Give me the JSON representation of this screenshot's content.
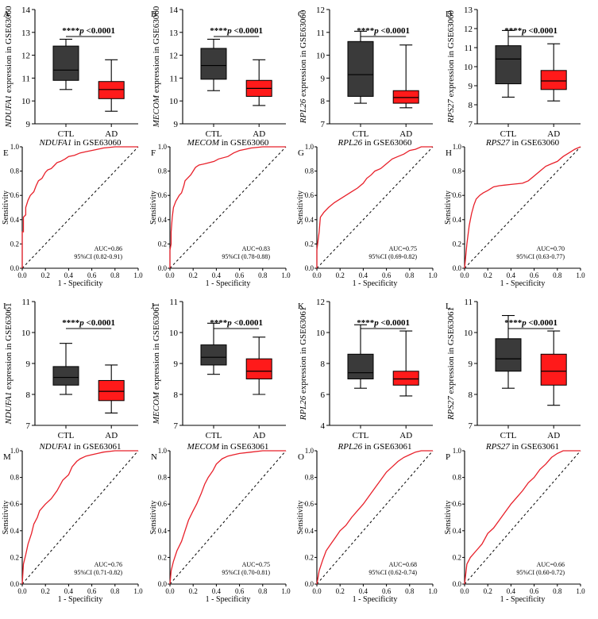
{
  "panels": [
    {
      "letter": "A",
      "type": "box",
      "gene": "NDUFA1",
      "ylabel_suffix": " expression in GSE63060",
      "ylim": [
        9,
        14
      ],
      "ticks": [
        9,
        10,
        11,
        12,
        13,
        14
      ],
      "categories": [
        "CTL",
        "AD"
      ],
      "boxes": [
        {
          "name": "CTL",
          "min": 10.5,
          "q1": 10.9,
          "median": 11.35,
          "q3": 12.4,
          "max": 12.7,
          "color": "#3a3a3a"
        },
        {
          "name": "AD",
          "min": 9.55,
          "q1": 10.1,
          "median": 10.5,
          "q3": 10.85,
          "max": 11.8,
          "color": "#ff1a1a"
        }
      ],
      "sig_stars": "****",
      "sig_p": "p",
      "sig_text": " <0.0001"
    },
    {
      "letter": "B",
      "type": "box",
      "gene": "MECOM",
      "ylabel_suffix": " expression in GSE63060",
      "ylim": [
        9,
        14
      ],
      "ticks": [
        9,
        10,
        11,
        12,
        13,
        14
      ],
      "categories": [
        "CTL",
        "AD"
      ],
      "boxes": [
        {
          "name": "CTL",
          "min": 10.45,
          "q1": 10.95,
          "median": 11.55,
          "q3": 12.3,
          "max": 12.7,
          "color": "#3a3a3a"
        },
        {
          "name": "AD",
          "min": 9.8,
          "q1": 10.2,
          "median": 10.55,
          "q3": 10.9,
          "max": 11.8,
          "color": "#ff1a1a"
        }
      ],
      "sig_stars": "****",
      "sig_p": "p",
      "sig_text": " <0.0001"
    },
    {
      "letter": "C",
      "type": "box",
      "gene": "RPL26",
      "ylabel_suffix": " expression in GSE63060",
      "ylim": [
        7,
        12
      ],
      "ticks": [
        7,
        8,
        9,
        10,
        11,
        12
      ],
      "categories": [
        "CTL",
        "AD"
      ],
      "boxes": [
        {
          "name": "CTL",
          "min": 7.9,
          "q1": 8.2,
          "median": 9.15,
          "q3": 10.6,
          "max": 11.05,
          "color": "#3a3a3a"
        },
        {
          "name": "AD",
          "min": 7.7,
          "q1": 7.9,
          "median": 8.15,
          "q3": 8.45,
          "max": 10.45,
          "color": "#ff1a1a"
        }
      ],
      "sig_stars": "****",
      "sig_p": "p",
      "sig_text": " <0.0001"
    },
    {
      "letter": "D",
      "type": "box",
      "gene": "RPS27",
      "ylabel_suffix": " expression in GSE63060",
      "ylim": [
        7,
        13
      ],
      "ticks": [
        7,
        8,
        9,
        10,
        11,
        12,
        13
      ],
      "categories": [
        "CTL",
        "AD"
      ],
      "boxes": [
        {
          "name": "CTL",
          "min": 8.4,
          "q1": 9.1,
          "median": 10.4,
          "q3": 11.1,
          "max": 11.9,
          "color": "#3a3a3a"
        },
        {
          "name": "AD",
          "min": 8.2,
          "q1": 8.8,
          "median": 9.25,
          "q3": 9.8,
          "max": 11.2,
          "color": "#ff1a1a"
        }
      ],
      "sig_stars": "****",
      "sig_p": "p",
      "sig_text": " <0.0001"
    },
    {
      "letter": "E",
      "type": "roc",
      "gene": "NDUFA1",
      "title_suffix": " in GSE63060",
      "auc": "AUC=0.86",
      "ci": "95%CI (0.82-0.91)",
      "x": [
        0,
        0,
        0.01,
        0.01,
        0.03,
        0.03,
        0.05,
        0.07,
        0.1,
        0.12,
        0.14,
        0.17,
        0.2,
        0.22,
        0.25,
        0.27,
        0.3,
        0.33,
        0.37,
        0.4,
        0.45,
        0.5,
        0.55,
        0.6,
        0.65,
        0.7,
        0.8,
        0.9,
        1.0
      ],
      "y": [
        0,
        0.3,
        0.3,
        0.42,
        0.44,
        0.5,
        0.56,
        0.6,
        0.63,
        0.68,
        0.72,
        0.74,
        0.79,
        0.81,
        0.82,
        0.84,
        0.87,
        0.88,
        0.9,
        0.92,
        0.93,
        0.95,
        0.96,
        0.97,
        0.98,
        0.99,
        1.0,
        1.0,
        1.0
      ]
    },
    {
      "letter": "F",
      "type": "roc",
      "gene": "MECOM",
      "title_suffix": " in GSE63060",
      "auc": "AUC=0.83",
      "ci": "95%CI (0.78-0.88)",
      "x": [
        0,
        0,
        0.01,
        0.01,
        0.02,
        0.03,
        0.05,
        0.08,
        0.1,
        0.12,
        0.13,
        0.15,
        0.18,
        0.2,
        0.22,
        0.25,
        0.3,
        0.38,
        0.42,
        0.5,
        0.55,
        0.6,
        0.65,
        0.7,
        0.8,
        0.9,
        1.0
      ],
      "y": [
        0,
        0.15,
        0.2,
        0.3,
        0.42,
        0.5,
        0.55,
        0.6,
        0.62,
        0.68,
        0.72,
        0.74,
        0.77,
        0.8,
        0.83,
        0.85,
        0.86,
        0.88,
        0.9,
        0.92,
        0.95,
        0.97,
        0.98,
        0.99,
        1.0,
        1.0,
        1.0
      ]
    },
    {
      "letter": "G",
      "type": "roc",
      "gene": "RPL26",
      "title_suffix": " in GSE63060",
      "auc": "AUC=0.75",
      "ci": "95%CI (0.69-0.82)",
      "x": [
        0,
        0,
        0.02,
        0.03,
        0.06,
        0.1,
        0.15,
        0.2,
        0.25,
        0.3,
        0.35,
        0.4,
        0.43,
        0.47,
        0.5,
        0.55,
        0.6,
        0.65,
        0.7,
        0.75,
        0.8,
        0.85,
        0.9,
        1.0
      ],
      "y": [
        0,
        0.15,
        0.3,
        0.42,
        0.46,
        0.5,
        0.54,
        0.57,
        0.6,
        0.63,
        0.66,
        0.7,
        0.74,
        0.77,
        0.8,
        0.82,
        0.86,
        0.9,
        0.92,
        0.94,
        0.97,
        0.98,
        1.0,
        1.0
      ]
    },
    {
      "letter": "H",
      "type": "roc",
      "gene": "RPS27",
      "title_suffix": " in GSE63060",
      "auc": "AUC=0.70",
      "ci": "95%CI (0.63-0.77)",
      "x": [
        0,
        0.02,
        0.04,
        0.06,
        0.08,
        0.1,
        0.13,
        0.16,
        0.2,
        0.25,
        0.3,
        0.4,
        0.5,
        0.55,
        0.6,
        0.65,
        0.7,
        0.75,
        0.8,
        0.85,
        0.9,
        0.95,
        1.0
      ],
      "y": [
        0,
        0.2,
        0.35,
        0.45,
        0.52,
        0.57,
        0.6,
        0.62,
        0.64,
        0.67,
        0.68,
        0.69,
        0.7,
        0.72,
        0.76,
        0.8,
        0.84,
        0.86,
        0.88,
        0.92,
        0.95,
        0.98,
        1.0
      ]
    },
    {
      "letter": "I",
      "type": "box",
      "gene": "NDUFA1",
      "ylabel_suffix": " expression in GSE63061",
      "ylim": [
        7,
        11
      ],
      "ticks": [
        7,
        8,
        9,
        10,
        11
      ],
      "categories": [
        "CTL",
        "AD"
      ],
      "boxes": [
        {
          "name": "CTL",
          "min": 8.0,
          "q1": 8.3,
          "median": 8.55,
          "q3": 8.9,
          "max": 9.65,
          "color": "#3a3a3a"
        },
        {
          "name": "AD",
          "min": 7.4,
          "q1": 7.8,
          "median": 8.1,
          "q3": 8.45,
          "max": 8.95,
          "color": "#ff1a1a"
        }
      ],
      "sig_stars": "****",
      "sig_p": "p",
      "sig_text": " <0.0001"
    },
    {
      "letter": "J",
      "type": "box",
      "gene": "MECOM",
      "ylabel_suffix": " expression in GSE63061",
      "ylim": [
        7,
        11
      ],
      "ticks": [
        7,
        8,
        9,
        10,
        11
      ],
      "categories": [
        "CTL",
        "AD"
      ],
      "boxes": [
        {
          "name": "CTL",
          "min": 8.65,
          "q1": 8.95,
          "median": 9.2,
          "q3": 9.6,
          "max": 10.3,
          "color": "#3a3a3a"
        },
        {
          "name": "AD",
          "min": 8.0,
          "q1": 8.5,
          "median": 8.75,
          "q3": 9.15,
          "max": 9.85,
          "color": "#ff1a1a"
        }
      ],
      "sig_stars": "****",
      "sig_p": "p",
      "sig_text": " <0.0001"
    },
    {
      "letter": "K",
      "type": "box",
      "gene": "RPL26",
      "ylabel_suffix": " expression in GSE63061",
      "ylim": [
        4,
        12
      ],
      "ticks": [
        4,
        6,
        8,
        10,
        12
      ],
      "categories": [
        "CTL",
        "AD"
      ],
      "boxes": [
        {
          "name": "CTL",
          "min": 6.4,
          "q1": 7.0,
          "median": 7.4,
          "q3": 8.6,
          "max": 10.5,
          "color": "#3a3a3a"
        },
        {
          "name": "AD",
          "min": 5.9,
          "q1": 6.6,
          "median": 7.0,
          "q3": 7.5,
          "max": 10.1,
          "color": "#ff1a1a"
        }
      ],
      "sig_stars": "****",
      "sig_p": "p",
      "sig_text": " <0.0001"
    },
    {
      "letter": "L",
      "type": "box",
      "gene": "RPS27",
      "ylabel_suffix": " expression in GSE63061",
      "ylim": [
        7,
        11
      ],
      "ticks": [
        7,
        8,
        9,
        10,
        11
      ],
      "categories": [
        "CTL",
        "AD"
      ],
      "boxes": [
        {
          "name": "CTL",
          "min": 8.2,
          "q1": 8.75,
          "median": 9.15,
          "q3": 9.8,
          "max": 10.55,
          "color": "#3a3a3a"
        },
        {
          "name": "AD",
          "min": 7.65,
          "q1": 8.3,
          "median": 8.75,
          "q3": 9.3,
          "max": 10.05,
          "color": "#ff1a1a"
        }
      ],
      "sig_stars": "****",
      "sig_p": "p",
      "sig_text": " <0.0001"
    },
    {
      "letter": "M",
      "type": "roc",
      "gene": "NDUFA1",
      "title_suffix": " in GSE63061",
      "auc": "AUC=0.76",
      "ci": "95%CI (0.71-0.82)",
      "x": [
        0,
        0.01,
        0.03,
        0.05,
        0.08,
        0.1,
        0.13,
        0.15,
        0.2,
        0.25,
        0.3,
        0.35,
        0.4,
        0.43,
        0.47,
        0.5,
        0.55,
        0.6,
        0.65,
        0.7,
        0.8,
        0.9,
        1.0
      ],
      "y": [
        0,
        0.15,
        0.22,
        0.3,
        0.38,
        0.45,
        0.5,
        0.55,
        0.6,
        0.64,
        0.7,
        0.78,
        0.82,
        0.88,
        0.92,
        0.94,
        0.96,
        0.97,
        0.98,
        0.99,
        1.0,
        1.0,
        1.0
      ]
    },
    {
      "letter": "N",
      "type": "roc",
      "gene": "MECOM",
      "title_suffix": " in GSE63061",
      "auc": "AUC=0.75",
      "ci": "95%CI (0.70-0.81)",
      "x": [
        0,
        0.01,
        0.03,
        0.06,
        0.1,
        0.13,
        0.16,
        0.2,
        0.23,
        0.27,
        0.3,
        0.33,
        0.37,
        0.4,
        0.45,
        0.5,
        0.55,
        0.6,
        0.7,
        0.8,
        0.9,
        1.0
      ],
      "y": [
        0,
        0.1,
        0.17,
        0.25,
        0.32,
        0.4,
        0.48,
        0.55,
        0.6,
        0.68,
        0.75,
        0.8,
        0.85,
        0.9,
        0.94,
        0.96,
        0.97,
        0.98,
        0.99,
        1.0,
        1.0,
        1.0
      ]
    },
    {
      "letter": "O",
      "type": "roc",
      "gene": "RPL26",
      "title_suffix": " in GSE63061",
      "auc": "AUC=0.68",
      "ci": "95%CI (0.62-0.74)",
      "x": [
        0,
        0.02,
        0.05,
        0.08,
        0.12,
        0.16,
        0.2,
        0.25,
        0.3,
        0.35,
        0.4,
        0.45,
        0.5,
        0.55,
        0.6,
        0.65,
        0.7,
        0.75,
        0.8,
        0.85,
        0.9,
        1.0
      ],
      "y": [
        0,
        0.1,
        0.18,
        0.25,
        0.3,
        0.35,
        0.4,
        0.44,
        0.5,
        0.55,
        0.6,
        0.66,
        0.72,
        0.78,
        0.84,
        0.88,
        0.92,
        0.95,
        0.97,
        0.99,
        1.0,
        1.0
      ]
    },
    {
      "letter": "P",
      "type": "roc",
      "gene": "RPS27",
      "title_suffix": " in GSE63061",
      "auc": "AUC=0.66",
      "ci": "95%CI (0.60-0.72)",
      "x": [
        0,
        0.02,
        0.05,
        0.1,
        0.15,
        0.2,
        0.25,
        0.3,
        0.35,
        0.4,
        0.45,
        0.5,
        0.55,
        0.6,
        0.65,
        0.7,
        0.75,
        0.8,
        0.85,
        0.9,
        1.0
      ],
      "y": [
        0,
        0.15,
        0.2,
        0.25,
        0.3,
        0.38,
        0.42,
        0.48,
        0.54,
        0.6,
        0.65,
        0.7,
        0.76,
        0.8,
        0.86,
        0.9,
        0.95,
        0.98,
        1.0,
        1.0,
        1.0
      ]
    }
  ],
  "roc_axis": {
    "xlabel": "1 - Specificity",
    "ylabel": "Sensitivity",
    "ticks": [
      "0.0",
      "0.2",
      "0.4",
      "0.6",
      "0.8",
      "1.0"
    ]
  },
  "chart_data": [
    {
      "type": "box",
      "title": "A",
      "ylabel": "NDUFA1 expression in GSE63060",
      "categories": [
        "CTL",
        "AD"
      ],
      "ylim": [
        9,
        14
      ]
    },
    {
      "type": "box",
      "title": "B",
      "ylabel": "MECOM expression in GSE63060",
      "categories": [
        "CTL",
        "AD"
      ],
      "ylim": [
        9,
        14
      ]
    },
    {
      "type": "box",
      "title": "C",
      "ylabel": "RPL26 expression in GSE63060",
      "categories": [
        "CTL",
        "AD"
      ],
      "ylim": [
        7,
        12
      ]
    },
    {
      "type": "box",
      "title": "D",
      "ylabel": "RPS27 expression in GSE63060",
      "categories": [
        "CTL",
        "AD"
      ],
      "ylim": [
        7,
        13
      ]
    },
    {
      "type": "line",
      "title": "NDUFA1 in GSE63060",
      "xlabel": "1 - Specificity",
      "ylabel": "Sensitivity",
      "xlim": [
        0,
        1
      ],
      "ylim": [
        0,
        1
      ]
    },
    {
      "type": "line",
      "title": "MECOM in GSE63060",
      "xlabel": "1 - Specificity",
      "ylabel": "Sensitivity",
      "xlim": [
        0,
        1
      ],
      "ylim": [
        0,
        1
      ]
    },
    {
      "type": "line",
      "title": "RPL26 in GSE63060",
      "xlabel": "1 - Specificity",
      "ylabel": "Sensitivity",
      "xlim": [
        0,
        1
      ],
      "ylim": [
        0,
        1
      ]
    },
    {
      "type": "line",
      "title": "RPS27 in GSE63060",
      "xlabel": "1 - Specificity",
      "ylabel": "Sensitivity",
      "xlim": [
        0,
        1
      ],
      "ylim": [
        0,
        1
      ]
    },
    {
      "type": "box",
      "title": "I",
      "ylabel": "NDUFA1 expression in GSE63061",
      "categories": [
        "CTL",
        "AD"
      ],
      "ylim": [
        7,
        11
      ]
    },
    {
      "type": "box",
      "title": "J",
      "ylabel": "MECOM expression in GSE63061",
      "categories": [
        "CTL",
        "AD"
      ],
      "ylim": [
        7,
        11
      ]
    },
    {
      "type": "box",
      "title": "K",
      "ylabel": "RPL26 expression in GSE63061",
      "categories": [
        "CTL",
        "AD"
      ],
      "ylim": [
        4,
        12
      ]
    },
    {
      "type": "box",
      "title": "L",
      "ylabel": "RPS27 expression in GSE63061",
      "categories": [
        "CTL",
        "AD"
      ],
      "ylim": [
        7,
        11
      ]
    },
    {
      "type": "line",
      "title": "NDUFA1 in GSE63061",
      "xlabel": "1 - Specificity",
      "ylabel": "Sensitivity",
      "xlim": [
        0,
        1
      ],
      "ylim": [
        0,
        1
      ]
    },
    {
      "type": "line",
      "title": "MECOM in GSE63061",
      "xlabel": "1 - Specificity",
      "ylabel": "Sensitivity",
      "xlim": [
        0,
        1
      ],
      "ylim": [
        0,
        1
      ]
    },
    {
      "type": "line",
      "title": "RPL26 in GSE63061",
      "xlabel": "1 - Specificity",
      "ylabel": "Sensitivity",
      "xlim": [
        0,
        1
      ],
      "ylim": [
        0,
        1
      ]
    },
    {
      "type": "line",
      "title": "RPS27 in GSE63061",
      "xlabel": "1 - Specificity",
      "ylabel": "Sensitivity",
      "xlim": [
        0,
        1
      ],
      "ylim": [
        0,
        1
      ]
    }
  ]
}
